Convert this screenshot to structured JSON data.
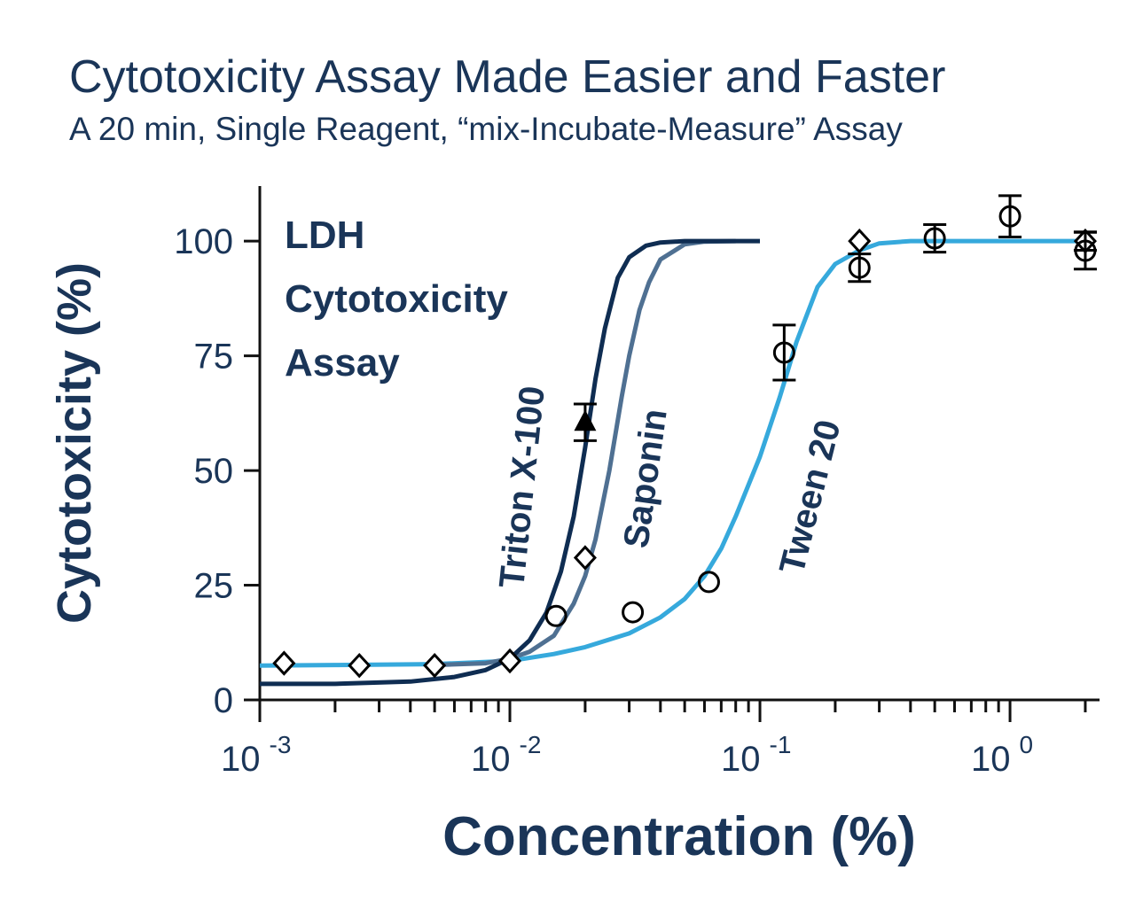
{
  "chart_data": {
    "type": "line",
    "title": "Cytotoxicity Assay Made Easier and Faster",
    "subtitle": "A 20 min, Single Reagent, “mix-Incubate-Measure” Assay",
    "annotation": [
      "LDH",
      "Cytotoxicity",
      "Assay"
    ],
    "x_label": "Concentration (%)",
    "y_label": "Cytotoxicity (%)",
    "log_x": true,
    "xlim": [
      0.001,
      2.28
    ],
    "ylim": [
      0,
      112
    ],
    "xticks": [
      {
        "value": 0.001,
        "label": "10",
        "exponent": "-3"
      },
      {
        "value": 0.01,
        "label": "10",
        "exponent": "-2"
      },
      {
        "value": 0.1,
        "label": "10",
        "exponent": "-1"
      },
      {
        "value": 1,
        "label": "10",
        "exponent": "0"
      }
    ],
    "xminorticks": [
      0.002,
      0.003,
      0.004,
      0.005,
      0.006,
      0.007,
      0.008,
      0.009,
      0.02,
      0.03,
      0.04,
      0.05,
      0.06,
      0.07,
      0.08,
      0.09,
      0.2,
      0.3,
      0.4,
      0.5,
      0.6,
      0.7,
      0.8,
      0.9,
      2
    ],
    "yticks": [
      0,
      25,
      50,
      75,
      100
    ],
    "series": [
      {
        "name": "Tween 20",
        "color": "#36a9dc",
        "x": [
          0.001,
          0.002,
          0.005,
          0.01,
          0.015,
          0.02,
          0.03,
          0.04,
          0.05,
          0.06,
          0.07,
          0.08,
          0.1,
          0.12,
          0.14,
          0.17,
          0.2,
          0.25,
          0.3,
          0.4,
          1,
          2
        ],
        "values": [
          7.5,
          7.6,
          7.8,
          8.5,
          10,
          11.5,
          14.5,
          18,
          22,
          27,
          33,
          40,
          53,
          66,
          78,
          90,
          95,
          98,
          99.5,
          100,
          100,
          100
        ]
      },
      {
        "name": "Saponin",
        "color": "#4f7092",
        "x": [
          0.005,
          0.008,
          0.01,
          0.012,
          0.015,
          0.018,
          0.02,
          0.022,
          0.025,
          0.028,
          0.03,
          0.033,
          0.036,
          0.04,
          0.05,
          0.06,
          0.08
        ],
        "values": [
          7.6,
          8,
          9,
          10.5,
          14,
          21,
          27,
          35,
          50,
          66,
          75,
          85,
          91,
          96,
          99.3,
          99.9,
          100
        ]
      },
      {
        "name": "Triton X-100",
        "color": "#0f2d52",
        "x": [
          0.001,
          0.002,
          0.004,
          0.006,
          0.008,
          0.01,
          0.012,
          0.014,
          0.016,
          0.018,
          0.02,
          0.022,
          0.024,
          0.027,
          0.03,
          0.035,
          0.04,
          0.05,
          0.1
        ],
        "values": [
          3.5,
          3.5,
          4,
          5,
          6.5,
          9,
          13,
          19,
          28,
          40,
          55,
          70,
          81,
          92,
          96.5,
          99,
          99.7,
          100,
          100
        ]
      }
    ],
    "points": [
      {
        "marker": "diamond",
        "color": "#000000",
        "x": [
          0.00125,
          0.0025,
          0.005,
          0.01,
          0.02,
          0.25,
          2
        ],
        "values": [
          8,
          7.5,
          7.5,
          8.5,
          31,
          100,
          100
        ],
        "errors": [
          null,
          null,
          null,
          null,
          null,
          null,
          2
        ]
      },
      {
        "marker": "triangle",
        "color": "#000000",
        "x": [
          0.02
        ],
        "values": [
          60.5
        ],
        "errors": [
          4
        ]
      },
      {
        "marker": "circle",
        "color": "#000000",
        "x": [
          0.0153,
          0.031,
          0.0625,
          0.125,
          0.25,
          0.5,
          1,
          2
        ],
        "values": [
          18.3,
          19.1,
          25.7,
          75.7,
          94.2,
          100.6,
          105.4,
          97.9
        ],
        "errors": [
          null,
          null,
          null,
          6,
          3,
          3,
          4.5,
          4
        ]
      }
    ]
  }
}
